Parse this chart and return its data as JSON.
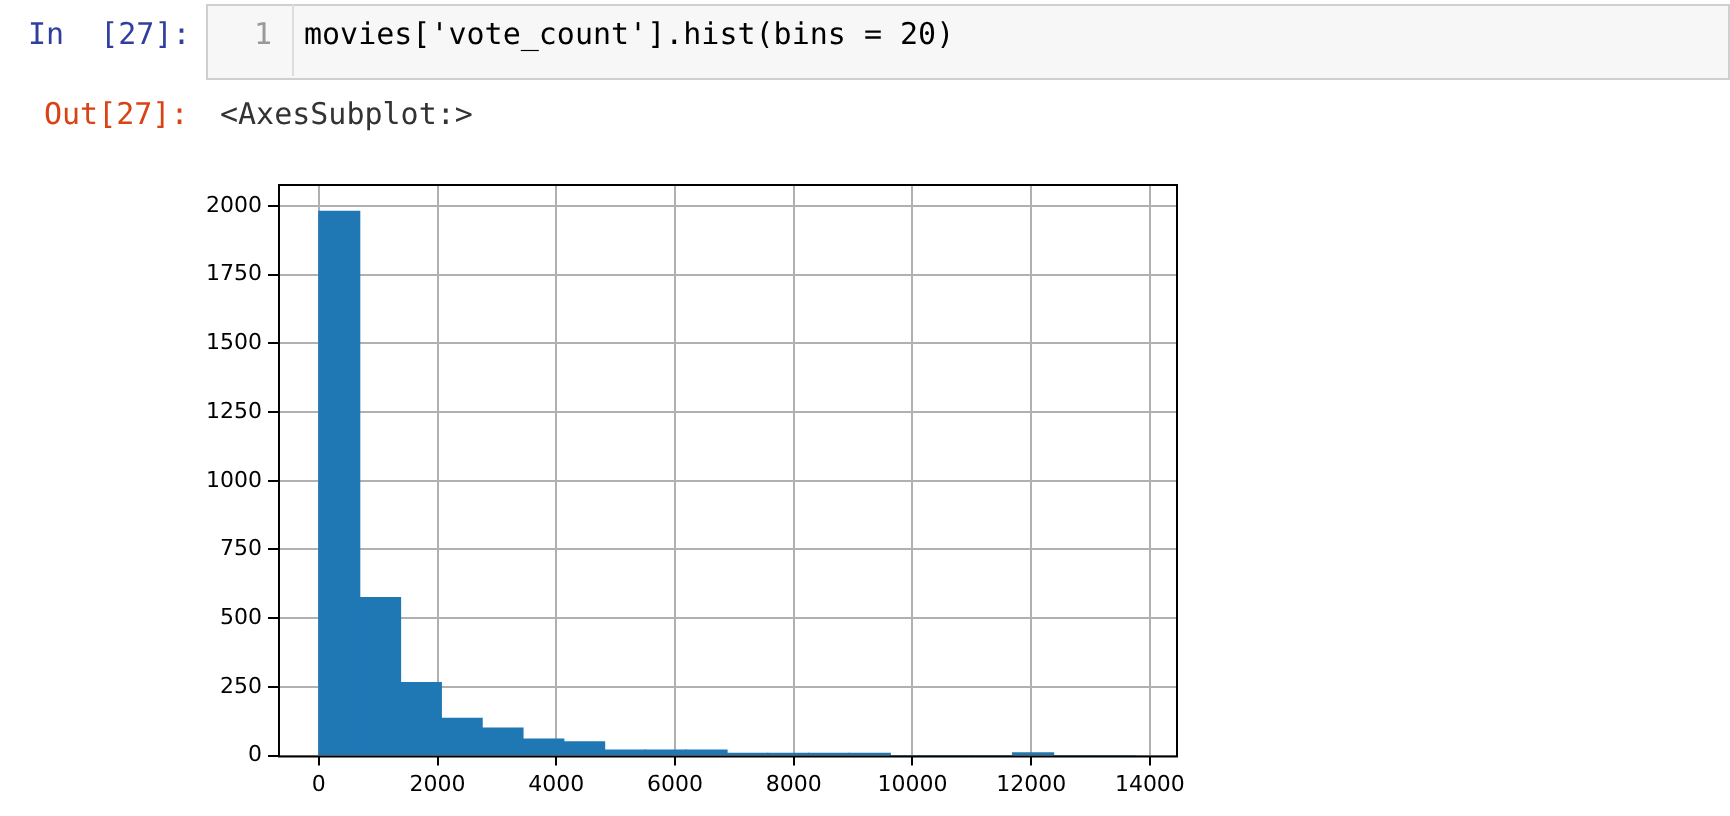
{
  "chart_data": {
    "type": "histogram",
    "annotations": [
      "In  [27]:",
      "1",
      "movies['vote_count'].hist(bins = 20)",
      "Out[27]:",
      "<AxesSubplot:>"
    ],
    "bins": [
      0,
      688,
      1375,
      2063,
      2750,
      3438,
      4126,
      4813,
      5501,
      6188,
      6876,
      7564,
      8251,
      8939,
      9626,
      10314,
      11002,
      11689,
      12377,
      13064,
      13752
    ],
    "values": [
      1980,
      575,
      265,
      135,
      100,
      60,
      50,
      20,
      20,
      20,
      8,
      8,
      8,
      8,
      0,
      0,
      0,
      10,
      0,
      0
    ],
    "color": "#1f77b4",
    "xlim": [
      -688,
      14440
    ],
    "xticks": [
      0,
      2000,
      4000,
      6000,
      8000,
      10000,
      12000,
      14000
    ],
    "ylim": [
      0,
      2080
    ],
    "yticks": [
      0,
      250,
      500,
      750,
      1000,
      1250,
      1500,
      1750,
      2000
    ],
    "grid": true
  }
}
